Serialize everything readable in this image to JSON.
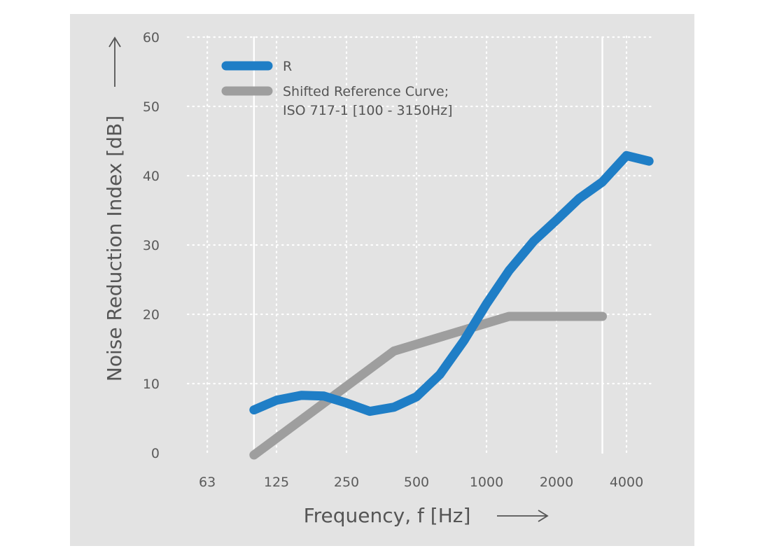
{
  "chart_data": {
    "type": "line",
    "x_scale": "log",
    "x_ticks": [
      63,
      125,
      250,
      500,
      1000,
      2000,
      4000
    ],
    "x_tick_labels": [
      "63",
      "125",
      "250",
      "500",
      "1000",
      "2000",
      "4000"
    ],
    "y_ticks": [
      0,
      10,
      20,
      30,
      40,
      50,
      60
    ],
    "y_tick_labels": [
      "0",
      "10",
      "20",
      "30",
      "40",
      "50",
      "60"
    ],
    "ylim": [
      0,
      60
    ],
    "xlim": [
      63,
      5000
    ],
    "xlabel": "Frequency, f [Hz]",
    "ylabel": "Noise Reduction Index [dB]",
    "grid": "dotted",
    "band_limits": [
      100,
      3150
    ],
    "legend_placement": "top-left",
    "background_color": "#e3e3e3",
    "series": [
      {
        "name": "R",
        "color": "#1f7ec6",
        "x": [
          100,
          125,
          160,
          200,
          250,
          315,
          400,
          500,
          630,
          800,
          1000,
          1250,
          1600,
          2000,
          2500,
          3150,
          4000,
          5000
        ],
        "y": [
          6.2,
          7.6,
          8.3,
          8.2,
          7.2,
          6.0,
          6.6,
          8.1,
          11.3,
          16.2,
          21.5,
          26.3,
          30.6,
          33.6,
          36.7,
          39.1,
          42.9,
          42.1
        ]
      },
      {
        "name": "Shifted Reference Curve; ISO 717-1 [100 - 3150Hz]",
        "name_lines": [
          "Shifted Reference Curve;",
          "ISO 717-1 [100 - 3150Hz]"
        ],
        "color": "#9e9e9e",
        "x": [
          100,
          400,
          1250,
          3150
        ],
        "y": [
          -0.3,
          14.7,
          19.7,
          19.7
        ]
      }
    ]
  }
}
